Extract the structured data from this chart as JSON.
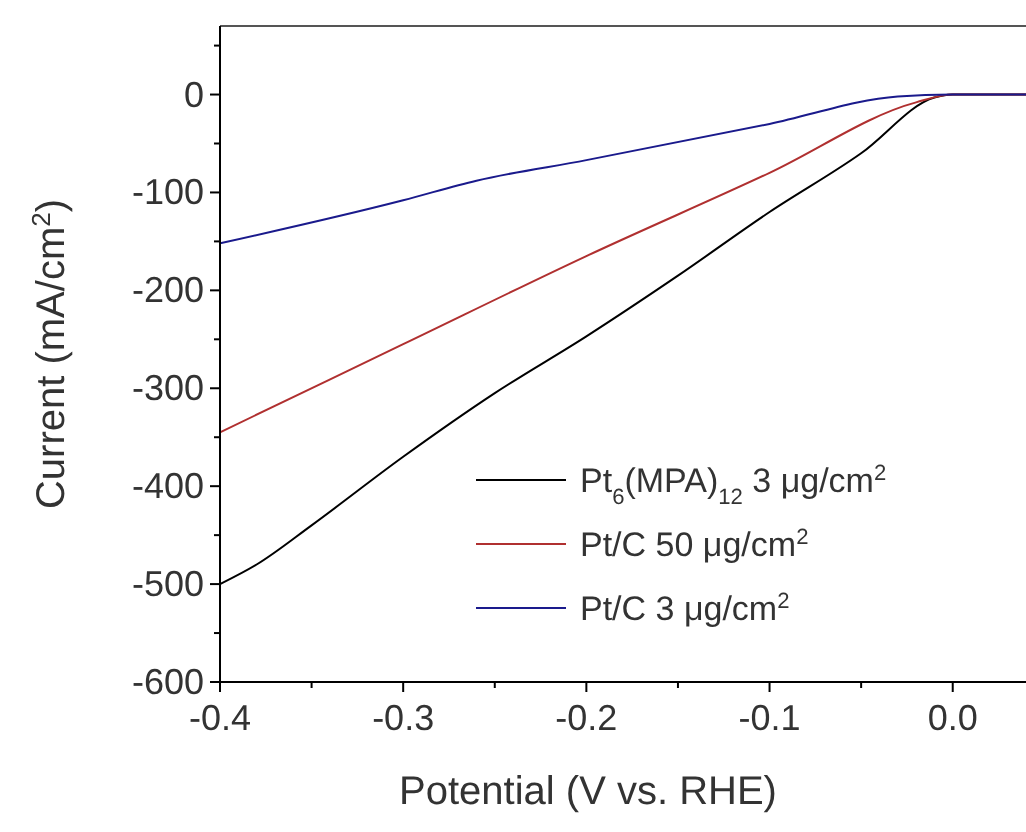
{
  "chart_data": {
    "type": "line",
    "xlabel": "Potential (V vs. RHE)",
    "ylabel": "Current (mA/cm$^{2}$)",
    "xlim": [
      -0.4,
      0.04
    ],
    "ylim": [
      -600,
      70
    ],
    "xticks": [
      -0.4,
      {
        "value": -0.35,
        "label": null
      },
      -0.3,
      {
        "value": -0.25,
        "label": null
      },
      -0.2,
      {
        "value": -0.15,
        "label": null
      },
      -0.1,
      {
        "value": -0.05,
        "label": null
      },
      "0.0"
    ],
    "yticks": [
      -600,
      {
        "value": -550,
        "label": null
      },
      -500,
      {
        "value": -450,
        "label": null
      },
      -400,
      {
        "value": -350,
        "label": null
      },
      -300,
      {
        "value": -250,
        "label": null
      },
      -200,
      {
        "value": -150,
        "label": null
      },
      -100,
      {
        "value": -50,
        "label": null
      },
      0,
      {
        "value": 50,
        "label": null
      }
    ],
    "grid": false,
    "legend": "bottom right",
    "marker": "none",
    "line_style": "solid",
    "series": [
      {
        "name": "Pt$_{6}$(MPA)$_{12}$ 3 μg/cm$^{2}$",
        "color": "#000000",
        "x": [
          -0.4,
          -0.38,
          -0.35,
          -0.3,
          -0.25,
          -0.2,
          -0.15,
          -0.1,
          -0.05,
          -0.01,
          0,
          0.04
        ],
        "values": [
          -500,
          -480,
          -440,
          -370,
          -305,
          -247,
          -185,
          -120,
          -60,
          -3,
          0,
          0
        ]
      },
      {
        "name": "Pt/C 50 μg/cm$^{2}$",
        "color": "#b03030",
        "x": [
          -0.4,
          -0.3,
          -0.2,
          -0.1,
          -0.02,
          0,
          0.04
        ],
        "values": [
          -345,
          -255,
          -165,
          -80,
          -8,
          0,
          0
        ]
      },
      {
        "name": "Pt/C 3 μg/cm$^{2}$",
        "color": "#1a1a8c",
        "x": [
          -0.4,
          -0.3,
          -0.26,
          -0.2,
          -0.1,
          -0.03,
          0,
          0.04
        ],
        "values": [
          -152,
          -108,
          -88,
          -67,
          -30,
          -2,
          0,
          0
        ]
      }
    ]
  }
}
